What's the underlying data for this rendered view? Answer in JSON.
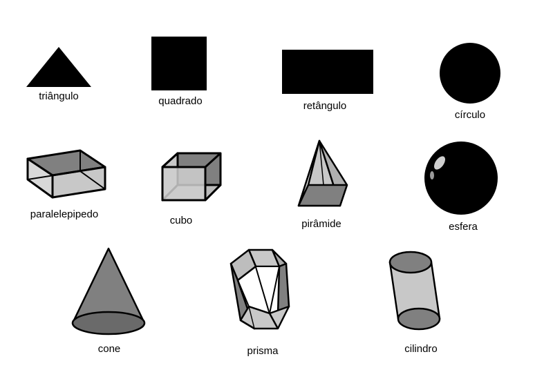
{
  "labels": {
    "triangle": "triângulo",
    "square": "quadrado",
    "rectangle": "retângulo",
    "circle": "círculo",
    "parallelepiped": "paralelepipedo",
    "cube": "cubo",
    "pyramid": "pirâmide",
    "sphere": "esfera",
    "cone": "cone",
    "prism": "prisma",
    "cylinder": "cilindro"
  },
  "colors": {
    "fill_dark": "#000000",
    "face_dark": "#808080",
    "face_light": "#c8c8c8",
    "stroke": "#000000"
  }
}
